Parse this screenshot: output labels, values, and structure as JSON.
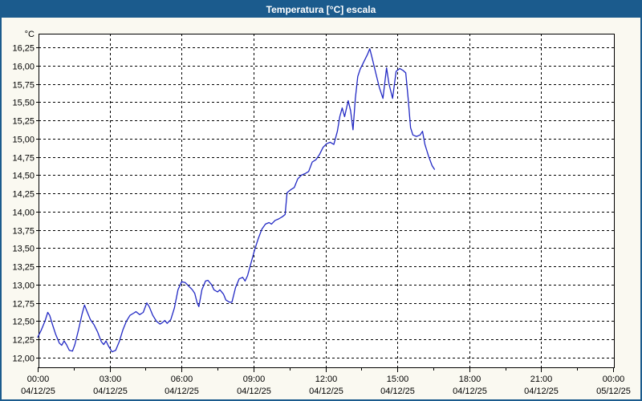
{
  "window": {
    "title": "Temperatura [°C] escala"
  },
  "colors": {
    "titlebar": "#1B5B8D",
    "window_border": "#1B5B8D",
    "content_bg": "#FAF9F1",
    "plot_bg": "#FFFFFF",
    "grid": "#000000",
    "frame": "#000000",
    "tick_text": "#000000",
    "title_text": "#FFFFFF",
    "line": "#2229C4"
  },
  "chart_data": {
    "type": "line",
    "title": "Temperatura [°C] escala",
    "y_unit": "°C",
    "ylabel": "",
    "xlabel": "",
    "ylim": [
      12.0,
      16.25
    ],
    "ytick_step": 0.25,
    "ytick_labels": [
      "12,00",
      "12,25",
      "12,50",
      "12,75",
      "13,00",
      "13,25",
      "13,50",
      "13,75",
      "14,00",
      "14,25",
      "14,50",
      "14,75",
      "15,00",
      "15,25",
      "15,50",
      "15,75",
      "16,00",
      "16,25"
    ],
    "xlim_hours": [
      0,
      24
    ],
    "x_minor_interval_hours": 1.5,
    "grid": "dashed",
    "legend": "none",
    "xticks": [
      {
        "hour": 0,
        "time": "00:00",
        "date": "04/12/25"
      },
      {
        "hour": 3,
        "time": "03:00",
        "date": "04/12/25"
      },
      {
        "hour": 6,
        "time": "06:00",
        "date": "04/12/25"
      },
      {
        "hour": 9,
        "time": "09:00",
        "date": "04/12/25"
      },
      {
        "hour": 12,
        "time": "12:00",
        "date": "04/12/25"
      },
      {
        "hour": 15,
        "time": "15:00",
        "date": "04/12/25"
      },
      {
        "hour": 18,
        "time": "18:00",
        "date": "04/12/25"
      },
      {
        "hour": 21,
        "time": "21:00",
        "date": "04/12/25"
      },
      {
        "hour": 24,
        "time": "00:00",
        "date": "05/12/25"
      }
    ],
    "series": [
      {
        "name": "Temperatura",
        "color": "#2229C4",
        "points": [
          [
            0.0,
            12.28
          ],
          [
            0.15,
            12.38
          ],
          [
            0.3,
            12.5
          ],
          [
            0.42,
            12.62
          ],
          [
            0.5,
            12.58
          ],
          [
            0.62,
            12.45
          ],
          [
            0.75,
            12.32
          ],
          [
            0.9,
            12.2
          ],
          [
            1.0,
            12.17
          ],
          [
            1.1,
            12.23
          ],
          [
            1.2,
            12.18
          ],
          [
            1.32,
            12.1
          ],
          [
            1.45,
            12.09
          ],
          [
            1.55,
            12.18
          ],
          [
            1.7,
            12.38
          ],
          [
            1.85,
            12.6
          ],
          [
            1.95,
            12.72
          ],
          [
            2.05,
            12.64
          ],
          [
            2.2,
            12.52
          ],
          [
            2.35,
            12.45
          ],
          [
            2.5,
            12.35
          ],
          [
            2.65,
            12.22
          ],
          [
            2.75,
            12.18
          ],
          [
            2.85,
            12.23
          ],
          [
            2.95,
            12.16
          ],
          [
            3.1,
            12.08
          ],
          [
            3.25,
            12.1
          ],
          [
            3.4,
            12.22
          ],
          [
            3.55,
            12.38
          ],
          [
            3.7,
            12.5
          ],
          [
            3.85,
            12.58
          ],
          [
            4.0,
            12.61
          ],
          [
            4.1,
            12.63
          ],
          [
            4.25,
            12.59
          ],
          [
            4.4,
            12.62
          ],
          [
            4.55,
            12.75
          ],
          [
            4.65,
            12.7
          ],
          [
            4.8,
            12.58
          ],
          [
            4.95,
            12.5
          ],
          [
            5.1,
            12.46
          ],
          [
            5.2,
            12.48
          ],
          [
            5.3,
            12.51
          ],
          [
            5.4,
            12.47
          ],
          [
            5.55,
            12.52
          ],
          [
            5.7,
            12.68
          ],
          [
            5.85,
            12.93
          ],
          [
            6.0,
            13.04
          ],
          [
            6.15,
            13.03
          ],
          [
            6.3,
            12.98
          ],
          [
            6.45,
            12.93
          ],
          [
            6.55,
            12.88
          ],
          [
            6.65,
            12.75
          ],
          [
            6.72,
            12.7
          ],
          [
            6.85,
            12.93
          ],
          [
            7.0,
            13.05
          ],
          [
            7.1,
            13.06
          ],
          [
            7.25,
            13.0
          ],
          [
            7.35,
            12.93
          ],
          [
            7.5,
            12.9
          ],
          [
            7.6,
            12.93
          ],
          [
            7.75,
            12.87
          ],
          [
            7.85,
            12.79
          ],
          [
            8.0,
            12.76
          ],
          [
            8.1,
            12.76
          ],
          [
            8.25,
            12.96
          ],
          [
            8.4,
            13.08
          ],
          [
            8.55,
            13.1
          ],
          [
            8.65,
            13.05
          ],
          [
            8.75,
            13.12
          ],
          [
            8.9,
            13.3
          ],
          [
            9.05,
            13.48
          ],
          [
            9.2,
            13.63
          ],
          [
            9.35,
            13.76
          ],
          [
            9.5,
            13.83
          ],
          [
            9.65,
            13.85
          ],
          [
            9.75,
            13.83
          ],
          [
            9.9,
            13.88
          ],
          [
            10.05,
            13.9
          ],
          [
            10.2,
            13.93
          ],
          [
            10.32,
            13.96
          ],
          [
            10.4,
            14.26
          ],
          [
            10.55,
            14.3
          ],
          [
            10.7,
            14.33
          ],
          [
            10.85,
            14.45
          ],
          [
            11.0,
            14.5
          ],
          [
            11.15,
            14.52
          ],
          [
            11.3,
            14.55
          ],
          [
            11.45,
            14.68
          ],
          [
            11.6,
            14.71
          ],
          [
            11.75,
            14.78
          ],
          [
            11.9,
            14.88
          ],
          [
            12.05,
            14.93
          ],
          [
            12.2,
            14.95
          ],
          [
            12.35,
            14.92
          ],
          [
            12.5,
            15.1
          ],
          [
            12.6,
            15.3
          ],
          [
            12.7,
            15.42
          ],
          [
            12.8,
            15.3
          ],
          [
            12.95,
            15.52
          ],
          [
            13.05,
            15.38
          ],
          [
            13.15,
            15.12
          ],
          [
            13.25,
            15.55
          ],
          [
            13.35,
            15.85
          ],
          [
            13.45,
            15.95
          ],
          [
            13.6,
            16.05
          ],
          [
            13.75,
            16.15
          ],
          [
            13.85,
            16.23
          ],
          [
            13.95,
            16.1
          ],
          [
            14.1,
            15.9
          ],
          [
            14.25,
            15.7
          ],
          [
            14.4,
            15.55
          ],
          [
            14.55,
            15.97
          ],
          [
            14.65,
            15.75
          ],
          [
            14.8,
            15.55
          ],
          [
            14.95,
            15.92
          ],
          [
            15.1,
            15.96
          ],
          [
            15.25,
            15.93
          ],
          [
            15.35,
            15.9
          ],
          [
            15.45,
            15.55
          ],
          [
            15.55,
            15.15
          ],
          [
            15.65,
            15.05
          ],
          [
            15.8,
            15.03
          ],
          [
            15.95,
            15.05
          ],
          [
            16.05,
            15.1
          ],
          [
            16.15,
            14.92
          ],
          [
            16.3,
            14.76
          ],
          [
            16.45,
            14.63
          ],
          [
            16.55,
            14.58
          ]
        ]
      }
    ]
  }
}
